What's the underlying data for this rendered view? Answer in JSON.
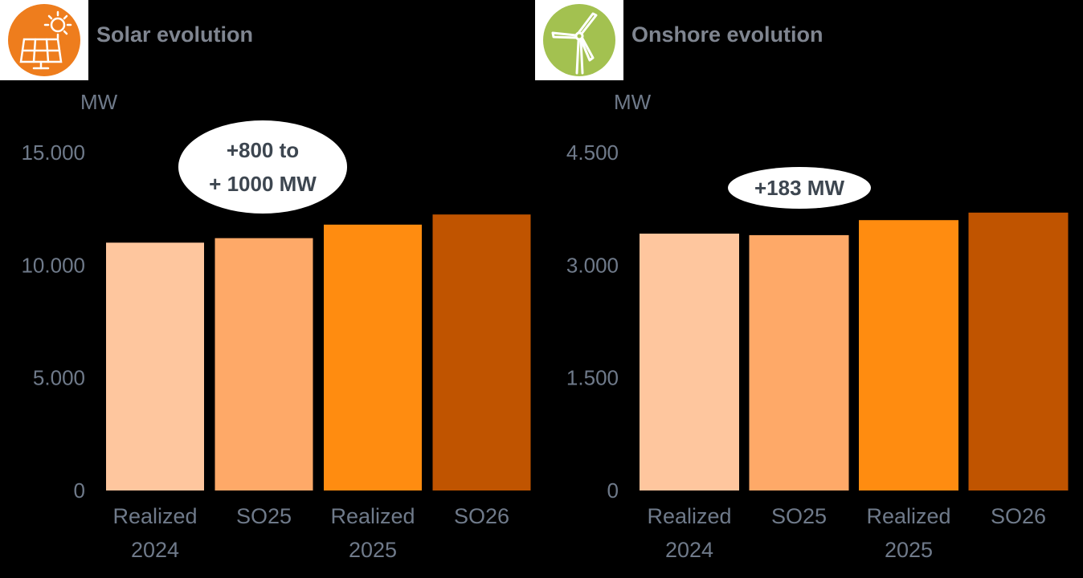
{
  "colors": {
    "realized_2024": "#fec69e",
    "so25": "#fea968",
    "realized_2025": "#ff8c10",
    "so26": "#c05400",
    "axis_text": "#6f7a8a",
    "solar_icon_bg": "#ee7d1d",
    "wind_icon_bg": "#a3c150"
  },
  "icons": {
    "solar": "solar-panel-sun-icon",
    "wind": "wind-turbine-icon"
  },
  "chart_data": [
    {
      "type": "bar",
      "title": "Solar evolution",
      "ylabel": "MW",
      "categories": [
        [
          "Realized",
          "2024"
        ],
        [
          "SO25"
        ],
        [
          "Realized",
          "2025"
        ],
        [
          "SO26"
        ]
      ],
      "values": [
        11000,
        11200,
        11800,
        12250
      ],
      "ylim": [
        0,
        15000
      ],
      "yticks": [
        0,
        5000,
        10000,
        15000
      ],
      "ytick_labels": [
        "0",
        "5.000",
        "10.000",
        "15.000"
      ],
      "annotation": [
        "+800 to",
        "+ 1000 MW"
      ],
      "grid": false
    },
    {
      "type": "bar",
      "title": "Onshore evolution",
      "ylabel": "MW",
      "categories": [
        [
          "Realized",
          "2024"
        ],
        [
          "SO25"
        ],
        [
          "Realized",
          "2025"
        ],
        [
          "SO26"
        ]
      ],
      "values": [
        3420,
        3400,
        3600,
        3700
      ],
      "ylim": [
        0,
        4500
      ],
      "yticks": [
        0,
        1500,
        3000,
        4500
      ],
      "ytick_labels": [
        "0",
        "1.500",
        "3.000",
        "4.500"
      ],
      "annotation": [
        "+183 MW"
      ],
      "grid": false
    }
  ]
}
